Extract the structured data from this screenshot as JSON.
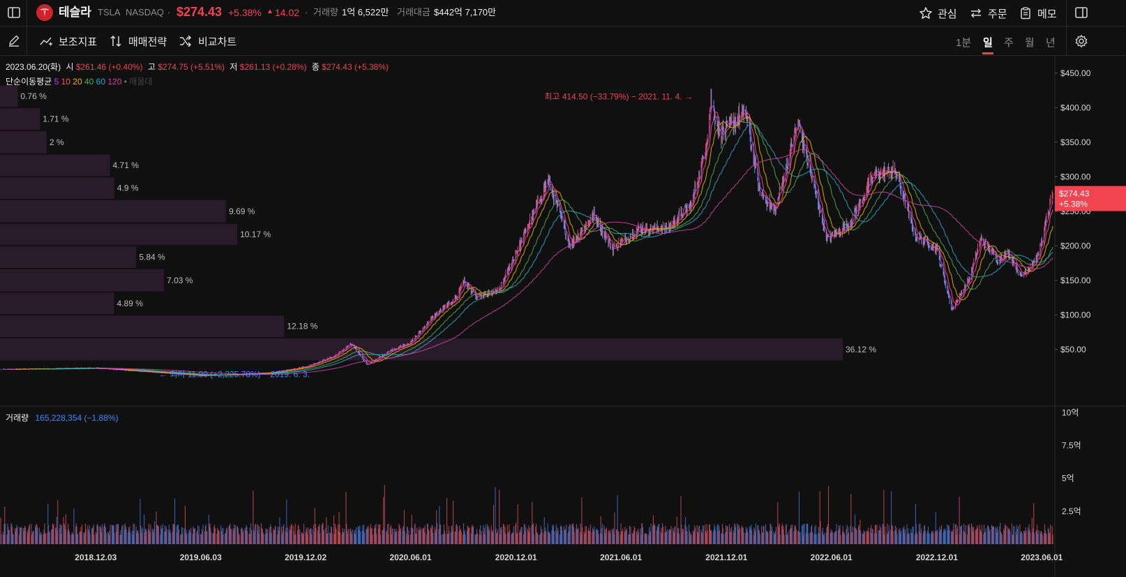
{
  "header": {
    "name": "테슬라",
    "ticker": "TSLA",
    "exchange": "NASDAQ",
    "dot": "·",
    "price": "$274.43",
    "change_pct": "+5.38%",
    "change_abs": "14.02",
    "volume_label": "거래량",
    "volume_value": "1억 6,522만",
    "amount_label": "거래대금",
    "amount_value": "$442억 7,170만",
    "watch_label": "관심",
    "order_label": "주문",
    "memo_label": "메모"
  },
  "toolbar": {
    "indicator_label": "보조지표",
    "strategy_label": "매매전략",
    "compare_label": "비교차트",
    "periods": [
      "1분",
      "일",
      "주",
      "월",
      "년"
    ],
    "active_period": "일"
  },
  "ohlc": {
    "date": "2023.06.20(화)",
    "open_label": "시",
    "open": "$261.46 (+0.40%)",
    "high_label": "고",
    "high": "$274.75 (+5.51%)",
    "low_label": "저",
    "low": "$261.13 (+0.28%)",
    "close_label": "종",
    "close": "$274.43 (+5.38%)"
  },
  "ma": {
    "label": "단순이동평균",
    "periods": [
      "5",
      "10",
      "20",
      "40",
      "60",
      "120"
    ],
    "colors": [
      "#c040ff",
      "#ff5a5a",
      "#e6b800",
      "#4caf50",
      "#2aa8c8",
      "#d040a0"
    ],
    "extra": "매물대"
  },
  "annotations": {
    "high": "최고 414.50 (−33.79%) − 2021. 11. 4.",
    "low": "최저 11.80 (+2,225.78%) − 2019. 6. 3."
  },
  "volume_panel": {
    "label": "거래량",
    "value": "165,228,354 (−1.88%)"
  },
  "colors": {
    "up": "#f04452",
    "down": "#3e7bd8",
    "background": "#101010",
    "profile_bar": "#2a1b2a"
  },
  "chart_data": {
    "type": "line",
    "title": "",
    "x_labels": [
      "2018.12.03",
      "2019.06.03",
      "2019.12.02",
      "2020.06.01",
      "2020.12.01",
      "2021.06.01",
      "2021.12.01",
      "2022.06.01",
      "2022.12.01",
      "2023.06.01"
    ],
    "y_ticks": [
      "$450.00",
      "$400.00",
      "$350.00",
      "$300.00",
      "$250.00",
      "$200.00",
      "$150.00",
      "$100.00",
      "$50.00"
    ],
    "y_tick_values": [
      450,
      400,
      350,
      300,
      250,
      200,
      150,
      100,
      50
    ],
    "ylim": [
      -30,
      475
    ],
    "price_tag": "$274.43",
    "price_tag_change": "+5.38%",
    "price_keypoints": [
      [
        "2018-06-21",
        21
      ],
      [
        "2018-12-03",
        23
      ],
      [
        "2019-06-03",
        12
      ],
      [
        "2019-10-01",
        16
      ],
      [
        "2019-12-02",
        25
      ],
      [
        "2020-01-20",
        40
      ],
      [
        "2020-02-19",
        58
      ],
      [
        "2020-03-18",
        28
      ],
      [
        "2020-05-01",
        50
      ],
      [
        "2020-06-01",
        60
      ],
      [
        "2020-07-13",
        100
      ],
      [
        "2020-08-20",
        125
      ],
      [
        "2020-08-31",
        150
      ],
      [
        "2020-09-23",
        125
      ],
      [
        "2020-11-01",
        135
      ],
      [
        "2020-12-01",
        190
      ],
      [
        "2021-01-26",
        295
      ],
      [
        "2021-03-05",
        200
      ],
      [
        "2021-04-14",
        245
      ],
      [
        "2021-05-18",
        195
      ],
      [
        "2021-07-01",
        225
      ],
      [
        "2021-08-20",
        225
      ],
      [
        "2021-10-01",
        260
      ],
      [
        "2021-10-25",
        340
      ],
      [
        "2021-11-04",
        410
      ],
      [
        "2021-11-20",
        360
      ],
      [
        "2022-01-03",
        395
      ],
      [
        "2022-01-27",
        280
      ],
      [
        "2022-02-23",
        250
      ],
      [
        "2022-04-04",
        380
      ],
      [
        "2022-05-24",
        210
      ],
      [
        "2022-07-01",
        230
      ],
      [
        "2022-08-16",
        305
      ],
      [
        "2022-09-20",
        308
      ],
      [
        "2022-10-24",
        215
      ],
      [
        "2022-12-01",
        195
      ],
      [
        "2022-12-27",
        108
      ],
      [
        "2023-01-25",
        150
      ],
      [
        "2023-02-15",
        210
      ],
      [
        "2023-03-17",
        180
      ],
      [
        "2023-04-05",
        190
      ],
      [
        "2023-04-26",
        155
      ],
      [
        "2023-05-25",
        185
      ],
      [
        "2023-06-20",
        274
      ]
    ],
    "volume_unit": "억",
    "volume_ticks": [
      "10억",
      "7.5억",
      "5억",
      "2.5억"
    ],
    "volume_tick_values": [
      10,
      7.5,
      5,
      2.5
    ],
    "volume_ylim": [
      0,
      10.5
    ],
    "volume_profile": [
      {
        "price_from": 400,
        "price_to": 433,
        "pct": 0.76,
        "label": "0.76 %"
      },
      {
        "price_from": 367,
        "price_to": 400,
        "pct": 1.71,
        "label": "1.71 %"
      },
      {
        "price_from": 333,
        "price_to": 367,
        "pct": 2.0,
        "label": "2 %"
      },
      {
        "price_from": 300,
        "price_to": 333,
        "pct": 4.71,
        "label": "4.71 %"
      },
      {
        "price_from": 267,
        "price_to": 300,
        "pct": 4.9,
        "label": "4.9 %"
      },
      {
        "price_from": 233,
        "price_to": 267,
        "pct": 9.69,
        "label": "9.69 %"
      },
      {
        "price_from": 200,
        "price_to": 233,
        "pct": 10.17,
        "label": "10.17 %"
      },
      {
        "price_from": 167,
        "price_to": 200,
        "pct": 5.84,
        "label": "5.84 %"
      },
      {
        "price_from": 133,
        "price_to": 167,
        "pct": 7.03,
        "label": "7.03 %"
      },
      {
        "price_from": 100,
        "price_to": 133,
        "pct": 4.89,
        "label": "4.89 %"
      },
      {
        "price_from": 67,
        "price_to": 100,
        "pct": 12.18,
        "label": "12.18 %"
      },
      {
        "price_from": 33,
        "price_to": 67,
        "pct": 36.12,
        "label": "36.12 %"
      }
    ],
    "grid": false,
    "legend": "top-left"
  }
}
